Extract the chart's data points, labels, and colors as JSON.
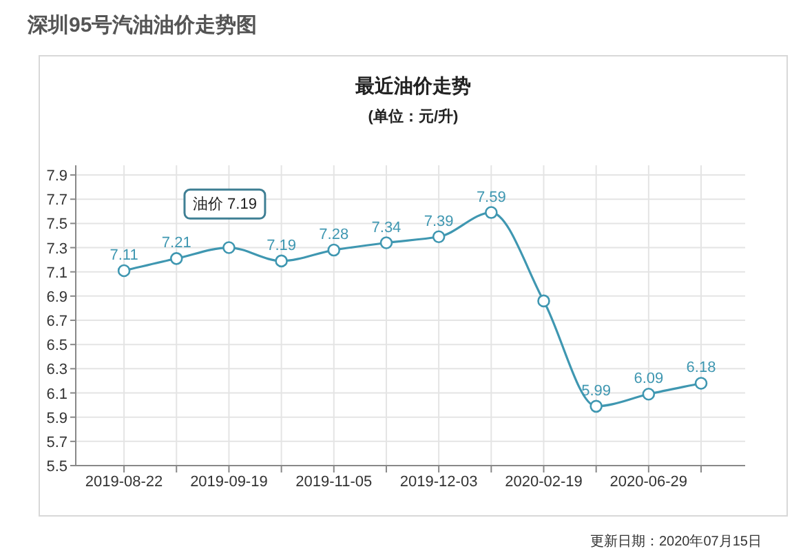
{
  "chart_data": {
    "type": "line",
    "title": "深圳95号汽油油价走势图",
    "subtitle": "最近油价走势",
    "annotations": [
      "(单位：元/升)",
      "油价 7.19",
      "更新日期：2020年07月15日"
    ],
    "categories": [
      "2019-08-22",
      null,
      "2019-09-19",
      null,
      "2019-11-05",
      null,
      "2019-12-03",
      null,
      "2020-02-19",
      null,
      "2020-06-29",
      null
    ],
    "series": [
      {
        "color": "#3f97b1",
        "values": [
          7.11,
          7.21,
          7.3,
          7.19,
          7.28,
          7.34,
          7.39,
          7.59,
          6.86,
          5.99,
          6.09,
          6.18
        ],
        "value_labels": [
          "7.11",
          "7.21",
          null,
          "7.19",
          "7.28",
          "7.34",
          "7.39",
          "7.59",
          null,
          "5.99",
          "6.09",
          "6.18"
        ]
      }
    ],
    "ylim": [
      5.5,
      7.98
    ],
    "yticks": [
      5.5,
      5.7,
      5.9,
      6.1,
      6.3,
      6.5,
      6.7,
      6.9,
      7.1,
      7.3,
      7.5,
      7.7,
      7.9
    ],
    "grid": true,
    "marker": "circle",
    "line_style": "solid"
  }
}
